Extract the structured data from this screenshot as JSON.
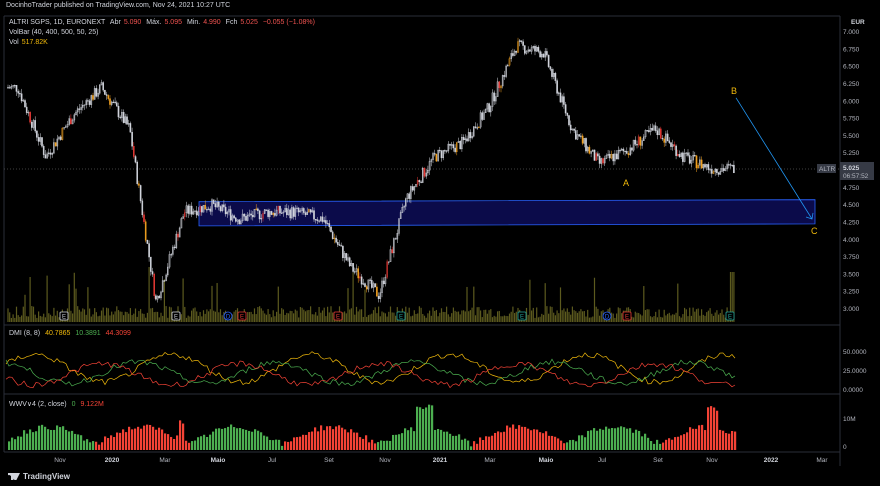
{
  "header": {
    "published": "DocinhoTrader published on TradingView.com, Nov 24, 2021 10:27 UTC"
  },
  "legend_main": {
    "symbol": "ALTRI SGPS, 1D, EURONEXT",
    "open_label": "Abr",
    "open": "5.090",
    "high_label": "Máx.",
    "high": "5.095",
    "low_label": "Min.",
    "low": "4.990",
    "close_label": "Fch",
    "close": "5.025",
    "change": "−0.055 (−1.08%)",
    "volbar": "VolBar (40, 400, 500, 50, 25)",
    "vol_label": "Vol",
    "vol": "517.82K"
  },
  "legend_dmi": {
    "name": "DMI (8, 8)",
    "v1": "40.7865",
    "v2": "10.3891",
    "v3": "44.3099"
  },
  "legend_wwv": {
    "name": "WWV∨4 (2, close)",
    "v1": "0",
    "v2": "9.122M"
  },
  "price_axis": {
    "currency": "EUR",
    "ticks": [
      "7.000",
      "6.750",
      "6.500",
      "6.250",
      "6.000",
      "5.750",
      "5.500",
      "5.250",
      "5.000",
      "4.750",
      "4.500",
      "4.250",
      "4.000",
      "3.750",
      "3.500",
      "3.250",
      "3.000"
    ],
    "last_symbol": "ALTR",
    "last_price": "5.025",
    "countdown": "06:57:52"
  },
  "dmi_axis": {
    "ticks": [
      "50.0000",
      "25.0000",
      "0.0000"
    ]
  },
  "wwv_axis": {
    "ticks": [
      "10M",
      "0"
    ]
  },
  "time_axis": {
    "labels": [
      "Nov",
      "2020",
      "Mar",
      "Maio",
      "Jul",
      "Set",
      "Nov",
      "2021",
      "Mar",
      "Maio",
      "Jul",
      "Set",
      "Nov",
      "2022",
      "Mar"
    ]
  },
  "wave_labels": {
    "a": "A",
    "b": "B",
    "c": "C"
  },
  "event_markers": [
    "E",
    "E",
    "D",
    "E",
    "E",
    "E",
    "E",
    "D",
    "E",
    "E"
  ],
  "footer": {
    "brand": "TradingView"
  },
  "colors": {
    "up": "#26a69a",
    "down": "#ef5350",
    "accent": "#f0b90b",
    "zone_fill": "#0b0b4a",
    "zone_border": "#2962ff",
    "adx": "#f0b90b",
    "di_plus": "#4caf50",
    "di_minus": "#f44336"
  },
  "chart_data": {
    "type": "line",
    "title": "ALTRI SGPS, 1D, EURONEXT",
    "price_path": {
      "x": [
        "2019-10",
        "2019-11",
        "2019-12",
        "2020-01",
        "2020-02",
        "2020-03",
        "2020-04",
        "2020-05",
        "2020-06",
        "2020-07",
        "2020-08",
        "2020-09",
        "2020-10",
        "2020-11",
        "2020-12",
        "2021-01",
        "2021-02",
        "2021-03",
        "2021-04",
        "2021-05",
        "2021-06",
        "2021-07",
        "2021-08",
        "2021-09",
        "2021-10",
        "2021-11"
      ],
      "y": [
        6.2,
        5.2,
        5.8,
        6.2,
        5.6,
        3.1,
        4.4,
        4.5,
        4.3,
        4.4,
        4.4,
        4.3,
        3.6,
        3.2,
        4.6,
        5.2,
        5.4,
        5.9,
        6.8,
        6.7,
        5.6,
        5.1,
        5.3,
        5.6,
        5.2,
        5.03
      ]
    },
    "zone": {
      "from": "2020-04",
      "to": "2022-03",
      "low": 4.2,
      "high": 4.55
    },
    "projection": {
      "from": {
        "x": "2021-11",
        "y": 6.05
      },
      "to": {
        "x": "2022-02",
        "y": 4.3
      }
    },
    "ylim": [
      2.9,
      7.1
    ]
  }
}
